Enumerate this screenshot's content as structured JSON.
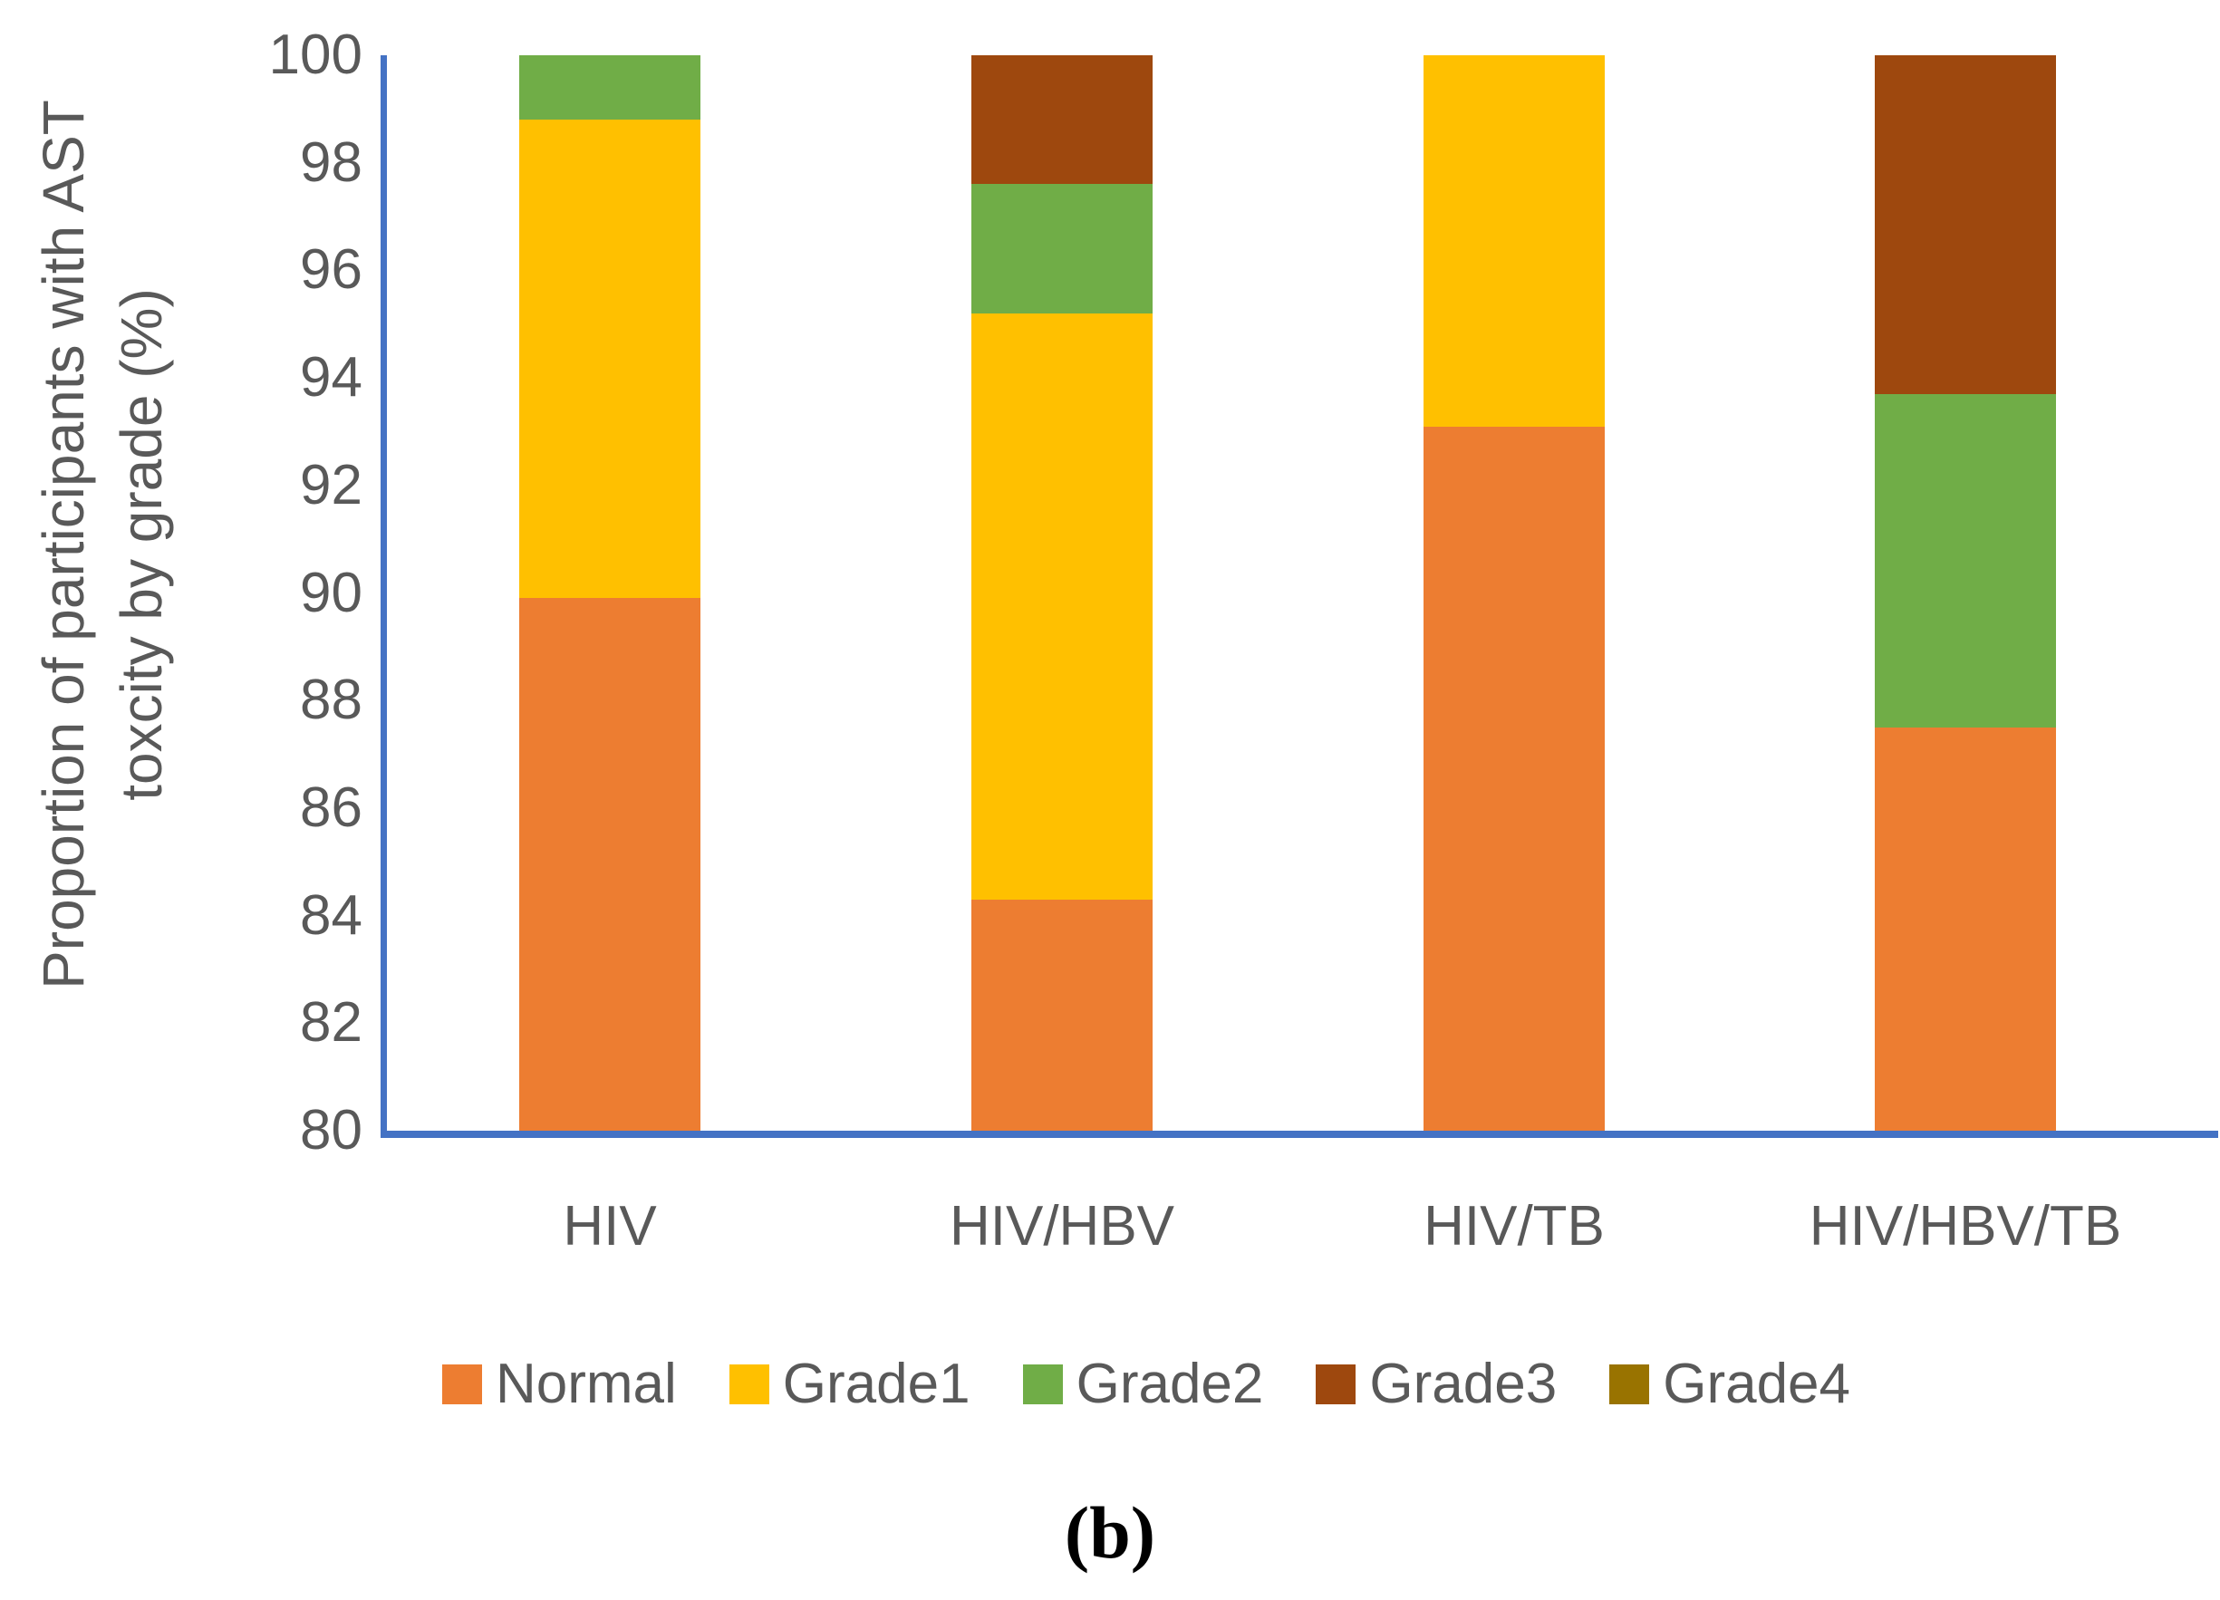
{
  "figure": {
    "caption": "(b)"
  },
  "chart_data": {
    "type": "bar",
    "stacked": true,
    "percent_stacked": true,
    "ylabel_line1": "Proportion of participants with AST",
    "ylabel_line2": "toxcity by grade (%)",
    "categories": [
      "HIV",
      "HIV/HBV",
      "HIV/TB",
      "HIV/HBV/TB"
    ],
    "series": [
      {
        "name": "Normal",
        "color": "#ED7D31",
        "values": [
          89.9,
          84.3,
          93.1,
          87.5
        ]
      },
      {
        "name": "Grade1",
        "color": "#FFC000",
        "values": [
          8.9,
          10.9,
          6.9,
          0
        ]
      },
      {
        "name": "Grade2",
        "color": "#70AD47",
        "values": [
          1.2,
          2.4,
          0,
          6.2
        ]
      },
      {
        "name": "Grade3",
        "color": "#9E480E",
        "values": [
          0,
          2.4,
          0,
          6.3
        ]
      },
      {
        "name": "Grade4",
        "color": "#997300",
        "values": [
          0,
          0,
          0,
          0
        ]
      }
    ],
    "ylim": [
      80,
      100
    ],
    "yticks": [
      100,
      98,
      96,
      94,
      92,
      90,
      88,
      86,
      84,
      82,
      80
    ],
    "grid": false,
    "legend_position": "bottom",
    "axis_color": "#4472C4",
    "text_color": "#595959"
  }
}
